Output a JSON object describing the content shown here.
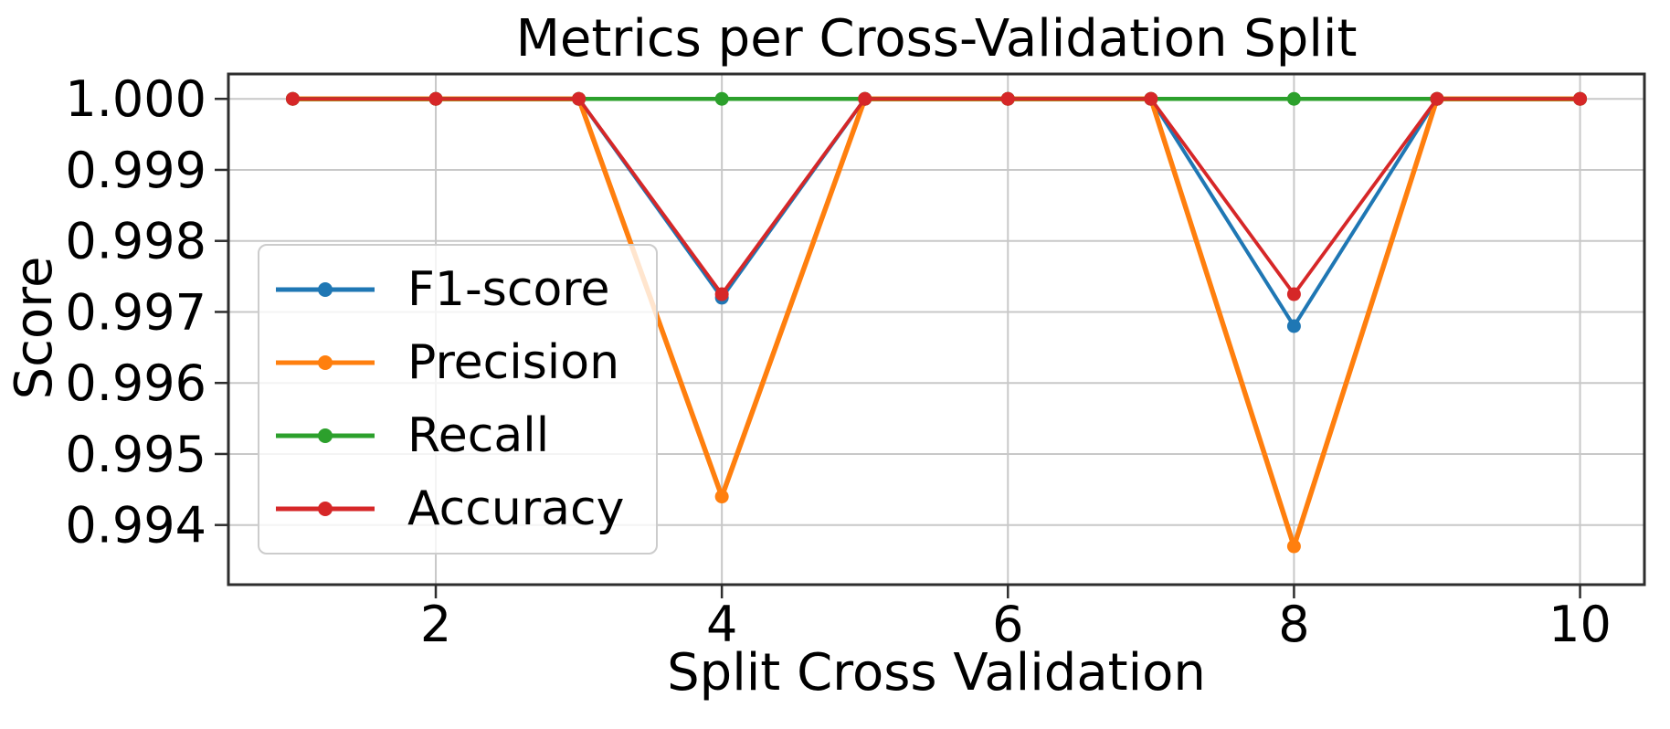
{
  "chart_data": {
    "type": "line",
    "title": "Metrics per Cross-Validation Split",
    "xlabel": "Split Cross Validation",
    "ylabel": "Score",
    "x": [
      1,
      2,
      3,
      4,
      5,
      6,
      7,
      8,
      9,
      10
    ],
    "series": [
      {
        "name": "F1-score",
        "color": "#1f77b4",
        "values": [
          1.0,
          1.0,
          1.0,
          0.9972,
          1.0,
          1.0,
          1.0,
          0.9968,
          1.0,
          1.0
        ]
      },
      {
        "name": "Precision",
        "color": "#ff7f0e",
        "values": [
          1.0,
          1.0,
          1.0,
          0.9944,
          1.0,
          1.0,
          1.0,
          0.9937,
          1.0,
          1.0
        ]
      },
      {
        "name": "Recall",
        "color": "#2ca02c",
        "values": [
          1.0,
          1.0,
          1.0,
          1.0,
          1.0,
          1.0,
          1.0,
          1.0,
          1.0,
          1.0
        ]
      },
      {
        "name": "Accuracy",
        "color": "#d62728",
        "values": [
          1.0,
          1.0,
          1.0,
          0.99725,
          1.0,
          1.0,
          1.0,
          0.99725,
          1.0,
          1.0
        ]
      }
    ],
    "xticks": {
      "values": [
        2,
        4,
        6,
        8,
        10
      ],
      "labels": [
        "2",
        "4",
        "6",
        "8",
        "10"
      ]
    },
    "yticks": {
      "values": [
        1.0,
        0.999,
        0.998,
        0.997,
        0.996,
        0.995,
        0.994
      ],
      "labels": [
        "1.000",
        "0.999",
        "0.998",
        "0.997",
        "0.996",
        "0.995",
        "0.994"
      ]
    },
    "xlim": [
      0.55,
      10.45
    ],
    "ylim": [
      0.99316,
      1.00035
    ],
    "grid": true,
    "legend": {
      "position": "center-left"
    },
    "colors": {
      "grid": "#c8c8c8",
      "spine": "#2e2e2e",
      "text": "#000000",
      "background": "#ffffff"
    }
  }
}
